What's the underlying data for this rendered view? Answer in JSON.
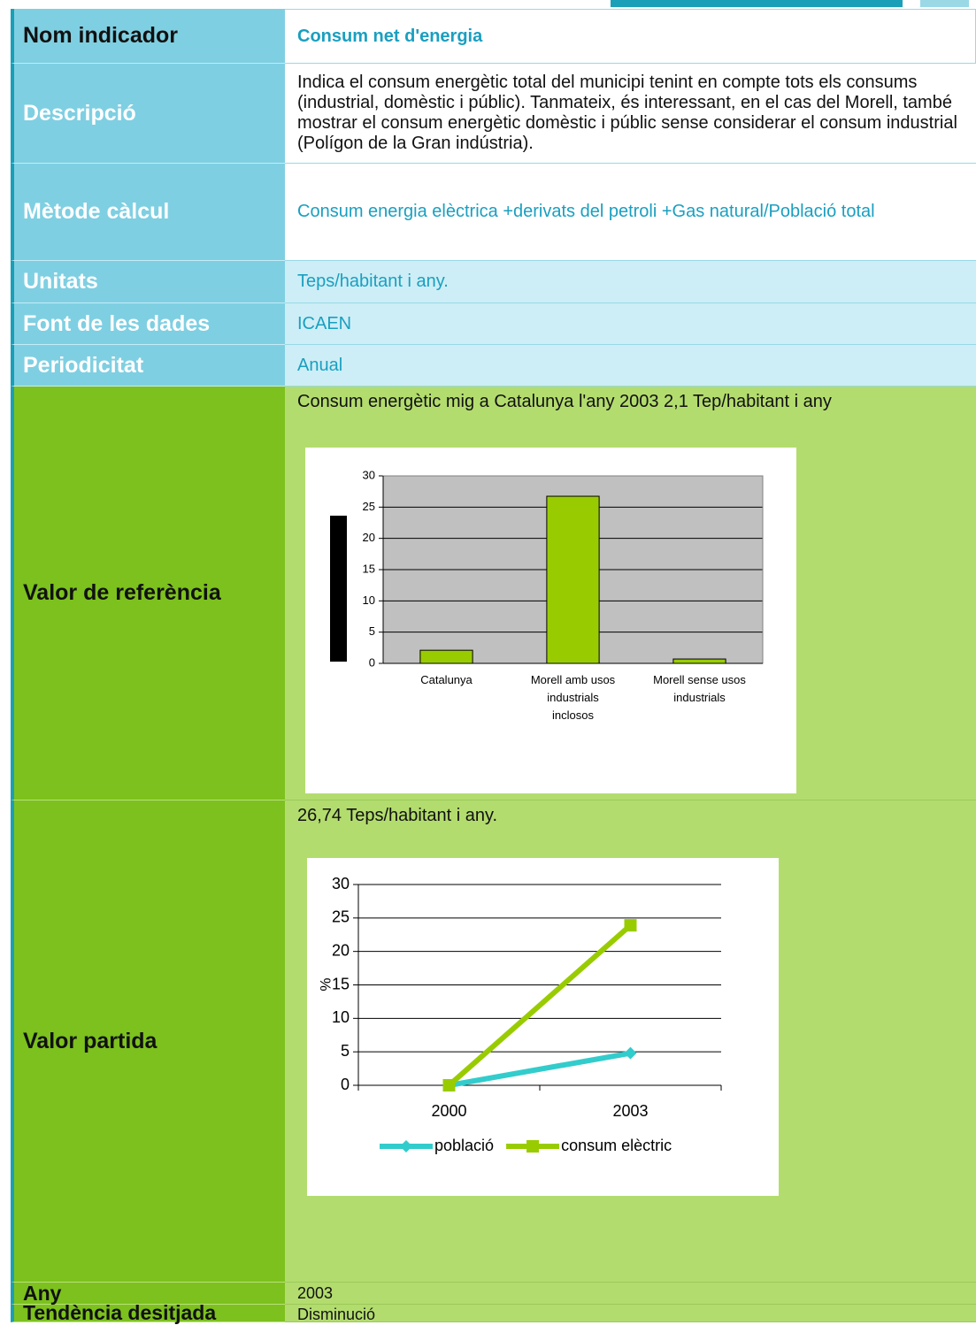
{
  "table": {
    "rows": [
      {
        "label": "Nom indicador",
        "value": "Consum net d'energia"
      },
      {
        "label": "Descripció",
        "value": "Indica el consum energètic total del municipi tenint en compte tots els consums (industrial, domèstic i públic). Tanmateix, és interessant, en el cas del Morell, també mostrar el consum energètic domèstic i públic sense considerar el consum industrial (Polígon de la Gran indústria)."
      },
      {
        "label": "Mètode càlcul",
        "value": "Consum energia elèctrica +derivats del petroli +Gas natural/Població total"
      },
      {
        "label": "Unitats",
        "value": "Teps/habitant i any."
      },
      {
        "label": "Font de les dades",
        "value": "ICAEN"
      },
      {
        "label": "Periodicitat",
        "value": "Anual"
      },
      {
        "label": "Valor de referència",
        "value": "Consum energètic mig a Catalunya l'any 2003 2,1 Tep/habitant i any"
      },
      {
        "label": "Valor partida",
        "value": "26,74 Teps/habitant i any."
      },
      {
        "label": "Any",
        "value": "2003"
      },
      {
        "label": "Tendència desitjada",
        "value": "Disminució"
      }
    ]
  },
  "chart_data": [
    {
      "type": "bar",
      "categories": [
        "Catalunya",
        "Morell amb usos industrials inclosos",
        "Morell sense usos industrials"
      ],
      "values": [
        2.1,
        26.74,
        0.7
      ],
      "color": "#99cc00",
      "ylim": [
        0,
        30
      ],
      "yticks": [
        0,
        5,
        10,
        15,
        20,
        25,
        30
      ],
      "grid": true
    },
    {
      "type": "line",
      "categories": [
        "2000",
        "2003"
      ],
      "y_label": "%",
      "series": [
        {
          "name": "població",
          "color": "#33cccc",
          "values": [
            0,
            4.8
          ]
        },
        {
          "name": "consum elèctric",
          "color": "#99cc00",
          "values": [
            0,
            23.9
          ]
        }
      ],
      "ylim": [
        0,
        30
      ],
      "yticks": [
        0,
        5,
        10,
        15,
        20,
        25,
        30
      ],
      "grid": true,
      "legend": "bottom"
    }
  ]
}
